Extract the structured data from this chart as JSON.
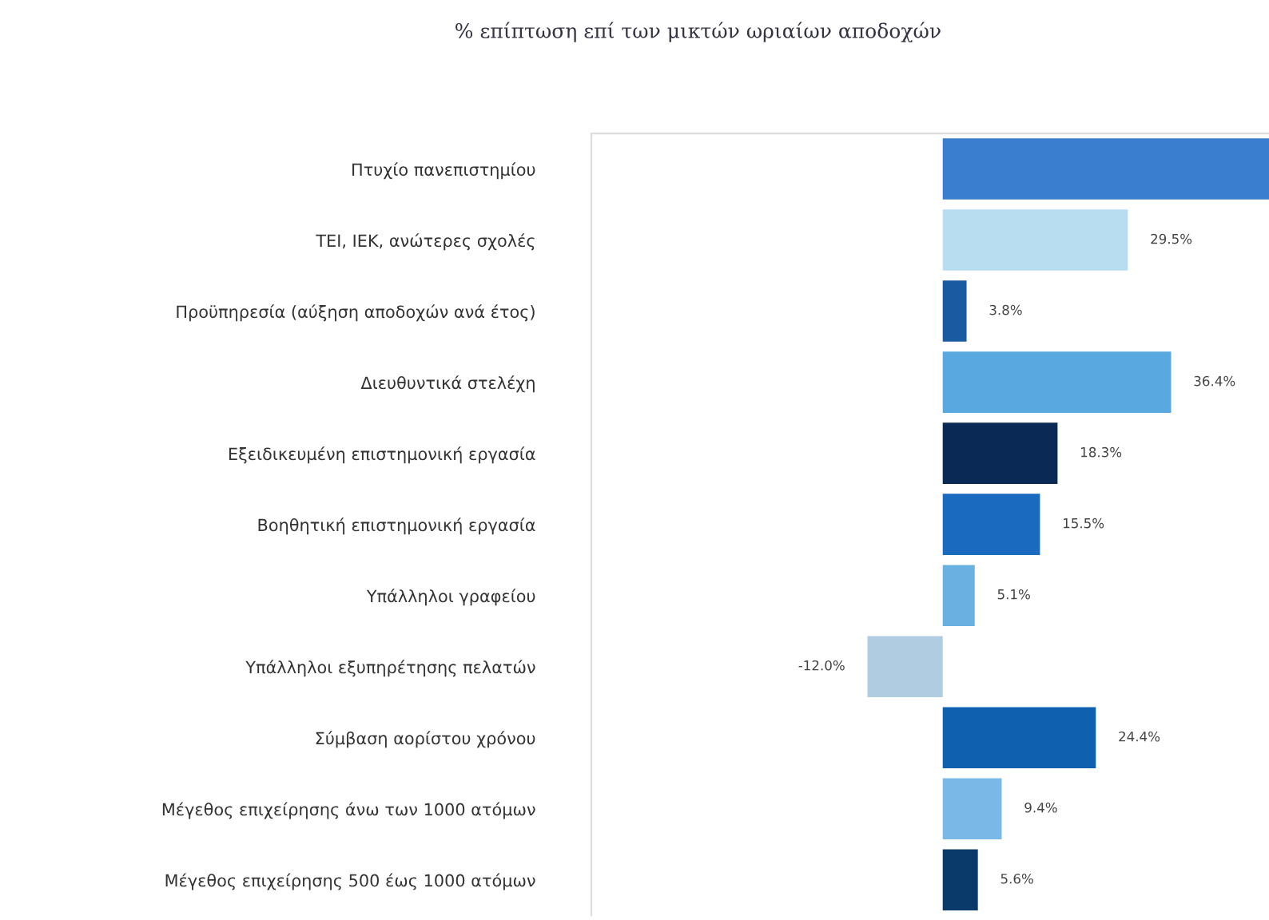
{
  "chart_data": {
    "type": "bar",
    "orientation": "horizontal",
    "title": "% επίπτωση επί των μικτών ωριαίων αποδοχών",
    "categories": [
      "Πτυχίο πανεπιστημίου",
      "ΤΕΙ, ΙΕΚ, ανώτερες σχολές",
      "Προϋπηρεσία (αύξηση αποδοχών ανά έτος)",
      "Διευθυντικά στελέχη",
      "Εξειδικευμένη επιστημονική εργασία",
      "Βοηθητική επιστημονική εργασία",
      "Υπάλληλοι γραφείου",
      "Υπάλληλοι εξυπηρέτησης πελατών",
      "Σύμβαση αορίστου χρόνου",
      "Μέγεθος επιχείρησης άνω των 1000 ατόμων",
      "Μέγεθος επιχείρησης 500 έως 1000 ατόμων"
    ],
    "values": [
      52,
      29.5,
      3.8,
      36.4,
      18.3,
      15.5,
      5.1,
      -12.0,
      24.4,
      9.4,
      5.6
    ],
    "value_labels": [
      null,
      "29.5%",
      "3.8%",
      "36.4%",
      "18.3%",
      "15.5%",
      "5.1%",
      "-12.0%",
      "24.4%",
      "9.4%",
      "5.6%"
    ],
    "colors": [
      "#3a7fcf",
      "#b8dcf0",
      "#1a5aa0",
      "#5aa8e0",
      "#0a2a55",
      "#1a6ac0",
      "#6ab0e0",
      "#b0cce0",
      "#1060b0",
      "#7ab8e8",
      "#0a3a6a"
    ],
    "xlim": [
      -56,
      52
    ],
    "grid": false,
    "legend": false
  }
}
